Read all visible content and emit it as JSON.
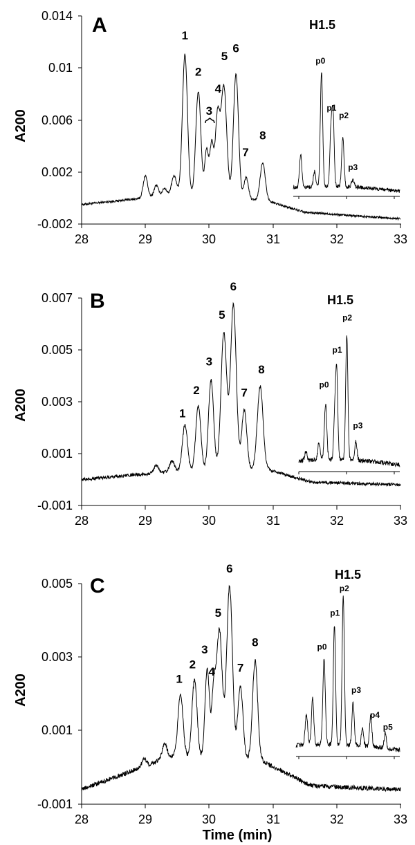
{
  "chart_data": [
    {
      "type": "line",
      "panel": "A",
      "ylabel": "A200",
      "y_ticks": [
        "-0.002",
        "0.002",
        "0.006",
        "0.01",
        "0.014"
      ],
      "x_ticks": [
        "28",
        "29",
        "30",
        "31",
        "32",
        "33"
      ],
      "xlim": [
        28,
        33
      ],
      "ylim": [
        -0.002,
        0.014
      ],
      "baseline": {
        "x": [
          28,
          29.4,
          30.9,
          31.5,
          33
        ],
        "y": [
          -0.0005,
          0.0002,
          -0.0002,
          -0.0011,
          -0.0016
        ]
      },
      "peaks": [
        {
          "x": 29.0,
          "h": 0.0017,
          "w": 0.035
        },
        {
          "x": 29.17,
          "h": 0.0009,
          "w": 0.035
        },
        {
          "x": 29.3,
          "h": 0.0006,
          "w": 0.035
        },
        {
          "x": 29.45,
          "h": 0.0015,
          "w": 0.04
        },
        {
          "x": 29.62,
          "h": 0.0109,
          "w": 0.04
        },
        {
          "x": 29.83,
          "h": 0.0081,
          "w": 0.04
        },
        {
          "x": 29.96,
          "h": 0.0036,
          "w": 0.03
        },
        {
          "x": 30.04,
          "h": 0.0041,
          "w": 0.03
        },
        {
          "x": 30.13,
          "h": 0.0061,
          "w": 0.035
        },
        {
          "x": 30.23,
          "h": 0.0086,
          "w": 0.045
        },
        {
          "x": 30.42,
          "h": 0.0096,
          "w": 0.04
        },
        {
          "x": 30.58,
          "h": 0.0017,
          "w": 0.035
        },
        {
          "x": 30.84,
          "h": 0.0029,
          "w": 0.04
        }
      ],
      "peak_labels": [
        {
          "text": "1",
          "x": 29.62,
          "y": 0.0122
        },
        {
          "text": "2",
          "x": 29.83,
          "y": 0.0094
        },
        {
          "text": "3",
          "x": 30.0,
          "y": 0.0064
        },
        {
          "text": "4",
          "x": 30.14,
          "y": 0.0081
        },
        {
          "text": "5",
          "x": 30.24,
          "y": 0.0106
        },
        {
          "text": "6",
          "x": 30.42,
          "y": 0.0112
        },
        {
          "text": "7",
          "x": 30.57,
          "y": 0.0032
        },
        {
          "text": "8",
          "x": 30.84,
          "y": 0.0045
        }
      ],
      "bracket_x": [
        29.94,
        30.08
      ],
      "inset": {
        "title": "H1.5",
        "peaks": [
          {
            "x": 0.07,
            "h": 0.26,
            "w": 0.011
          },
          {
            "x": 0.2,
            "h": 0.12,
            "w": 0.011
          },
          {
            "x": 0.265,
            "h": 0.93,
            "w": 0.011
          },
          {
            "x": 0.355,
            "h": 0.48,
            "w": 0.011
          },
          {
            "x": 0.375,
            "h": 0.52,
            "w": 0.01
          },
          {
            "x": 0.465,
            "h": 0.4,
            "w": 0.011
          },
          {
            "x": 0.56,
            "h": 0.06,
            "w": 0.012
          }
        ],
        "labels": [
          {
            "text": "p0",
            "x": 0.255,
            "y": 1.0
          },
          {
            "text": "p1",
            "x": 0.36,
            "y": 0.62
          },
          {
            "text": "p2",
            "x": 0.475,
            "y": 0.56
          },
          {
            "text": "p3",
            "x": 0.56,
            "y": 0.14
          }
        ]
      }
    },
    {
      "type": "line",
      "panel": "B",
      "ylabel": "A200",
      "y_ticks": [
        "-0.001",
        "0.001",
        "0.003",
        "0.005",
        "0.007"
      ],
      "x_ticks": [
        "28",
        "29",
        "30",
        "31",
        "32",
        "33"
      ],
      "xlim": [
        28,
        33
      ],
      "ylim": [
        -0.001,
        0.007
      ],
      "baseline": {
        "x": [
          28,
          29.4,
          30.9,
          31.6,
          33
        ],
        "y": [
          0.0,
          0.0003,
          0.0004,
          -0.0001,
          -0.0002
        ]
      },
      "peaks": [
        {
          "x": 29.17,
          "h": 0.0003,
          "w": 0.035
        },
        {
          "x": 29.42,
          "h": 0.0004,
          "w": 0.04
        },
        {
          "x": 29.62,
          "h": 0.0018,
          "w": 0.04
        },
        {
          "x": 29.83,
          "h": 0.0025,
          "w": 0.04
        },
        {
          "x": 30.03,
          "h": 0.0035,
          "w": 0.04
        },
        {
          "x": 30.23,
          "h": 0.0053,
          "w": 0.045
        },
        {
          "x": 30.38,
          "h": 0.0064,
          "w": 0.045
        },
        {
          "x": 30.55,
          "h": 0.0023,
          "w": 0.04
        },
        {
          "x": 30.8,
          "h": 0.0032,
          "w": 0.045
        }
      ],
      "peak_labels": [
        {
          "text": "1",
          "x": 29.58,
          "y": 0.0024
        },
        {
          "text": "2",
          "x": 29.8,
          "y": 0.0033
        },
        {
          "text": "3",
          "x": 30.0,
          "y": 0.0044
        },
        {
          "text": "5",
          "x": 30.2,
          "y": 0.0062
        },
        {
          "text": "6",
          "x": 30.38,
          "y": 0.0073
        },
        {
          "text": "7",
          "x": 30.55,
          "y": 0.0032
        },
        {
          "text": "8",
          "x": 30.82,
          "y": 0.0041
        }
      ],
      "inset": {
        "title": "H1.5",
        "peaks": [
          {
            "x": 0.07,
            "h": 0.06,
            "w": 0.011
          },
          {
            "x": 0.2,
            "h": 0.12,
            "w": 0.011
          },
          {
            "x": 0.265,
            "h": 0.38,
            "w": 0.012
          },
          {
            "x": 0.355,
            "h": 0.26,
            "w": 0.01
          },
          {
            "x": 0.375,
            "h": 0.62,
            "w": 0.011
          },
          {
            "x": 0.475,
            "h": 0.86,
            "w": 0.011
          },
          {
            "x": 0.565,
            "h": 0.13,
            "w": 0.011
          }
        ],
        "labels": [
          {
            "text": "p0",
            "x": 0.25,
            "y": 0.5
          },
          {
            "text": "p1",
            "x": 0.38,
            "y": 0.74
          },
          {
            "text": "p2",
            "x": 0.48,
            "y": 0.96
          },
          {
            "text": "p3",
            "x": 0.585,
            "y": 0.22
          }
        ]
      }
    },
    {
      "type": "line",
      "panel": "C",
      "ylabel": "A200",
      "xlabel": "Time (min)",
      "y_ticks": [
        "-0.001",
        "0.001",
        "0.003",
        "0.005"
      ],
      "x_ticks": [
        "28",
        "29",
        "30",
        "31",
        "32",
        "33"
      ],
      "xlim": [
        28,
        33
      ],
      "ylim": [
        -0.001,
        0.005
      ],
      "baseline": {
        "x": [
          28,
          29.4,
          30.8,
          31.6,
          33
        ],
        "y": [
          -0.0006,
          0.0003,
          0.0002,
          -0.0005,
          -0.0006
        ]
      },
      "peaks": [
        {
          "x": 28.98,
          "h": 0.0002,
          "w": 0.035
        },
        {
          "x": 29.3,
          "h": 0.0004,
          "w": 0.04
        },
        {
          "x": 29.55,
          "h": 0.0017,
          "w": 0.04
        },
        {
          "x": 29.77,
          "h": 0.0021,
          "w": 0.04
        },
        {
          "x": 29.97,
          "h": 0.0024,
          "w": 0.035
        },
        {
          "x": 30.07,
          "h": 0.0017,
          "w": 0.03
        },
        {
          "x": 30.16,
          "h": 0.0035,
          "w": 0.045
        },
        {
          "x": 30.32,
          "h": 0.0047,
          "w": 0.045
        },
        {
          "x": 30.49,
          "h": 0.002,
          "w": 0.04
        },
        {
          "x": 30.72,
          "h": 0.0027,
          "w": 0.04
        }
      ],
      "peak_labels": [
        {
          "text": "1",
          "x": 29.53,
          "y": 0.0023
        },
        {
          "text": "2",
          "x": 29.74,
          "y": 0.0027
        },
        {
          "text": "3",
          "x": 29.93,
          "y": 0.0031
        },
        {
          "text": "4",
          "x": 30.04,
          "y": 0.0025
        },
        {
          "text": "5",
          "x": 30.14,
          "y": 0.0041
        },
        {
          "text": "6",
          "x": 30.32,
          "y": 0.0053
        },
        {
          "text": "7",
          "x": 30.49,
          "y": 0.0026
        },
        {
          "text": "8",
          "x": 30.72,
          "y": 0.0033
        }
      ],
      "inset": {
        "title": "H1.5",
        "peaks": [
          {
            "x": 0.1,
            "h": 0.2,
            "w": 0.012
          },
          {
            "x": 0.16,
            "h": 0.3,
            "w": 0.011
          },
          {
            "x": 0.27,
            "h": 0.55,
            "w": 0.012
          },
          {
            "x": 0.37,
            "h": 0.77,
            "w": 0.011
          },
          {
            "x": 0.455,
            "h": 0.96,
            "w": 0.011
          },
          {
            "x": 0.55,
            "h": 0.27,
            "w": 0.011
          },
          {
            "x": 0.64,
            "h": 0.12,
            "w": 0.01
          },
          {
            "x": 0.72,
            "h": 0.2,
            "w": 0.011
          },
          {
            "x": 0.86,
            "h": 0.1,
            "w": 0.01
          }
        ],
        "labels": [
          {
            "text": "p0",
            "x": 0.25,
            "y": 0.62
          },
          {
            "text": "p1",
            "x": 0.375,
            "y": 0.84
          },
          {
            "text": "p2",
            "x": 0.465,
            "y": 1.0
          },
          {
            "text": "p3",
            "x": 0.58,
            "y": 0.34
          },
          {
            "text": "p4",
            "x": 0.76,
            "y": 0.18
          },
          {
            "text": "p5",
            "x": 0.885,
            "y": 0.1
          }
        ]
      }
    }
  ]
}
